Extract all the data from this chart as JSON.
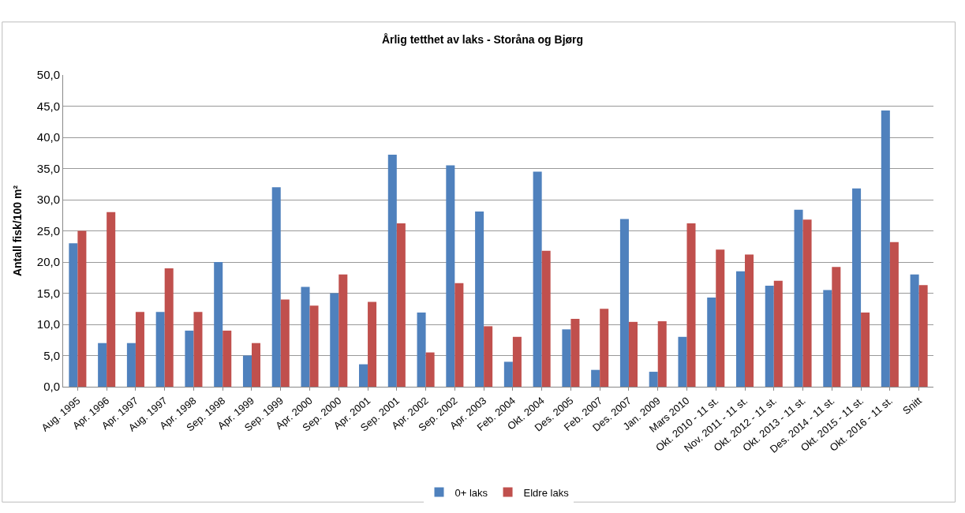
{
  "chart_data": {
    "type": "bar",
    "title": "Årlig tetthet av laks - Storåna og Bjørg",
    "ylabel": "Antall fisk/100 m²",
    "categories": [
      "Aug. 1995",
      "Apr. 1996",
      "Apr. 1997",
      "Aug. 1997",
      "Apr. 1998",
      "Sep. 1998",
      "Apr. 1999",
      "Sep. 1999",
      "Apr. 2000",
      "Sep. 2000",
      "Apr. 2001",
      "Sep. 2001",
      "Apr. 2002",
      "Sep. 2002",
      "Apr. 2003",
      "Feb. 2004",
      "Okt. 2004",
      "Des. 2005",
      "Feb. 2007",
      "Des. 2007",
      "Jan. 2009",
      "Mars 2010",
      "Okt. 2010 - 11 st.",
      "Nov. 2011 - 11 st.",
      "Okt. 2012 - 11 st.",
      "Okt. 2013 - 11 st.",
      "Des. 2014 - 11 st.",
      "Okt. 2015 - 11 st.",
      "Okt. 2016 - 11 st.",
      "Snitt"
    ],
    "series": [
      {
        "name": "0+ laks",
        "color": "#4f81bd",
        "values": [
          23,
          7,
          7,
          12,
          9,
          20,
          5,
          32,
          16,
          15,
          3.6,
          37.2,
          11.9,
          35.5,
          28.1,
          4,
          34.5,
          9.2,
          2.7,
          26.9,
          2.4,
          8,
          14.3,
          18.5,
          16.2,
          28.4,
          15.5,
          31.8,
          44.3,
          18
        ]
      },
      {
        "name": "Eldre laks",
        "color": "#c0504d",
        "values": [
          25,
          28,
          12,
          19,
          12,
          9,
          7,
          14,
          13,
          18,
          13.6,
          26.2,
          5.5,
          16.6,
          9.7,
          8,
          21.8,
          10.9,
          12.5,
          10.4,
          10.5,
          26.2,
          22,
          21.2,
          17,
          26.8,
          19.2,
          11.9,
          23.2,
          16.3
        ]
      }
    ],
    "ylim": [
      0,
      50
    ],
    "yticks": [
      {
        "value": 0,
        "label": "0,0"
      },
      {
        "value": 5,
        "label": "5,0"
      },
      {
        "value": 10,
        "label": "10,0"
      },
      {
        "value": 15,
        "label": "15,0"
      },
      {
        "value": 20,
        "label": "20,0"
      },
      {
        "value": 25,
        "label": "25,0"
      },
      {
        "value": 30,
        "label": "30,0"
      },
      {
        "value": 35,
        "label": "35,0"
      },
      {
        "value": 40,
        "label": "40,0"
      },
      {
        "value": 45,
        "label": "45,0"
      },
      {
        "value": 50,
        "label": "50,0"
      }
    ],
    "grid": "y",
    "legend": "bottom"
  }
}
